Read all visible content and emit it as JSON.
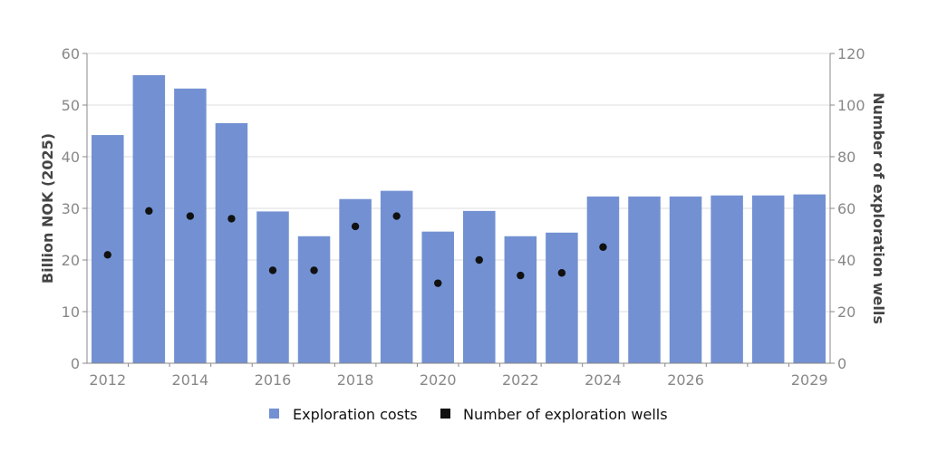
{
  "chart_data": {
    "type": "bar+scatter",
    "title": "",
    "categories": [
      "2012",
      "2013",
      "2014",
      "2015",
      "2016",
      "2017",
      "2018",
      "2019",
      "2020",
      "2021",
      "2022",
      "2023",
      "2024",
      "2025",
      "2026",
      "2027",
      "2028",
      "2029"
    ],
    "x_tick_labels": [
      "2012",
      "2014",
      "2016",
      "2018",
      "2020",
      "2022",
      "2024",
      "2026",
      "2029"
    ],
    "series": [
      {
        "name": "Exploration costs",
        "type": "bar",
        "axis": "left",
        "color": "#7391d2",
        "values": [
          44.2,
          55.8,
          53.2,
          46.5,
          29.4,
          24.6,
          31.8,
          33.4,
          25.5,
          29.5,
          24.6,
          25.3,
          32.3,
          32.3,
          32.3,
          32.5,
          32.5,
          32.7
        ]
      },
      {
        "name": "Number of exploration wells",
        "type": "scatter",
        "axis": "right",
        "color": "#111111",
        "values": [
          42,
          59,
          57,
          56,
          36,
          36,
          53,
          57,
          31,
          40,
          34,
          35,
          45
        ]
      }
    ],
    "ylabel_left": "Billion NOK (2025)",
    "ylabel_right": "Number of exploration wells",
    "ylim_left": [
      0,
      60
    ],
    "ylim_right": [
      0,
      120
    ],
    "yticks_left": [
      0,
      10,
      20,
      30,
      40,
      50,
      60
    ],
    "yticks_right": [
      0,
      20,
      40,
      60,
      80,
      100,
      120
    ],
    "grid": true,
    "legend_position": "bottom"
  }
}
